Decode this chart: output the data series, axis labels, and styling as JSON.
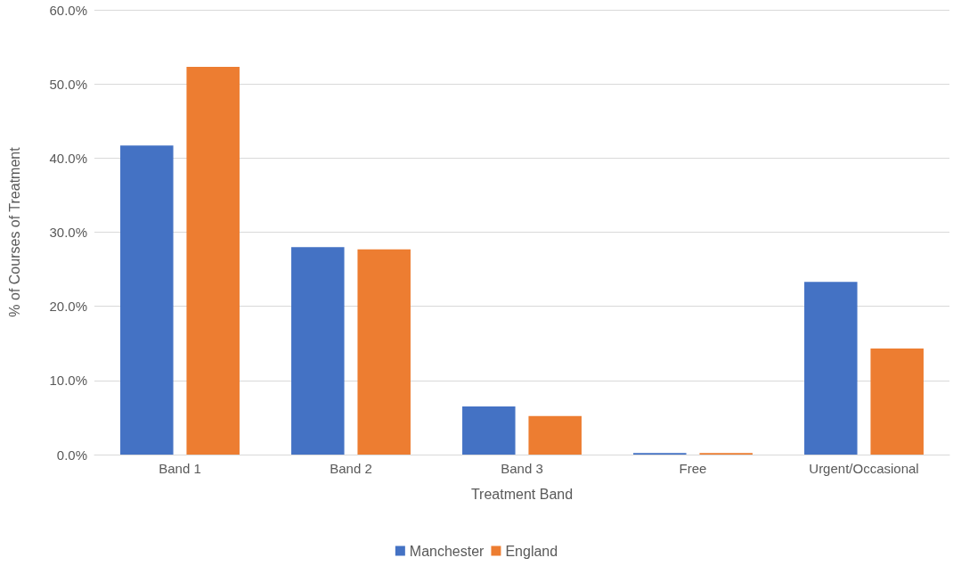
{
  "chart_data": {
    "type": "bar",
    "xlabel": "Treatment Band",
    "ylabel": "% of Courses of Treatment",
    "categories": [
      "Band 1",
      "Band 2",
      "Band 3",
      "Free",
      "Urgent/Occasional"
    ],
    "series": [
      {
        "name": "Manchester",
        "color": "#4472c4",
        "values": [
          41.7,
          28.0,
          6.5,
          0.2,
          23.3
        ]
      },
      {
        "name": "England",
        "color": "#ed7d31",
        "values": [
          52.3,
          27.7,
          5.2,
          0.2,
          14.3
        ]
      }
    ],
    "ylim": [
      0,
      60
    ],
    "yticks": [
      {
        "value": 0,
        "label": "0.0%"
      },
      {
        "value": 10,
        "label": "10.0%"
      },
      {
        "value": 20,
        "label": "20.0%"
      },
      {
        "value": 30,
        "label": "30.0%"
      },
      {
        "value": 40,
        "label": "40.0%"
      },
      {
        "value": 50,
        "label": "50.0%"
      },
      {
        "value": 60,
        "label": "60.0%"
      }
    ],
    "grid": "y",
    "legend": "bottom"
  }
}
